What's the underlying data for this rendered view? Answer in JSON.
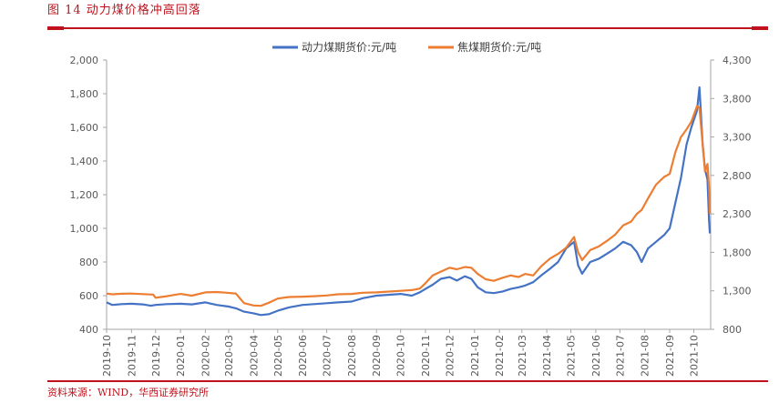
{
  "header": {
    "figure_title": "图 14    动力煤价格冲高回落"
  },
  "footer": {
    "source": "资料来源：WIND，华西证券研究所"
  },
  "colors": {
    "accent": "#c0121c",
    "thermal": "#4472c4",
    "coking": "#ed7d31",
    "axis": "#a6a6a6",
    "text": "#595959"
  },
  "chart_data": {
    "type": "line",
    "title": "",
    "legend_position": "top",
    "grid": false,
    "x_ticks": [
      "2019-10",
      "2019-11",
      "2019-12",
      "2020-01",
      "2020-02",
      "2020-03",
      "2020-04",
      "2020-05",
      "2020-06",
      "2020-07",
      "2020-08",
      "2020-09",
      "2020-10",
      "2020-11",
      "2020-12",
      "2021-01",
      "2021-02",
      "2021-03",
      "2021-04",
      "2021-05",
      "2021-06",
      "2021-07",
      "2021-08",
      "2021-09",
      "2021-10"
    ],
    "y_left": {
      "ticks": [
        "400",
        "600",
        "800",
        "1,000",
        "1,200",
        "1,400",
        "1,600",
        "1,800",
        "2,000"
      ],
      "range": [
        400,
        2000
      ]
    },
    "y_right": {
      "ticks": [
        "800",
        "1,300",
        "1,800",
        "2,300",
        "2,800",
        "3,300",
        "3,800",
        "4,300"
      ],
      "range": [
        800,
        4300
      ]
    },
    "series": [
      {
        "name": "动力煤期货价:元/吨",
        "axis": "left",
        "points": [
          [
            "2019-10-01",
            560
          ],
          [
            "2019-10-08",
            545
          ],
          [
            "2019-10-20",
            550
          ],
          [
            "2019-11-01",
            552
          ],
          [
            "2019-11-15",
            548
          ],
          [
            "2019-11-25",
            540
          ],
          [
            "2019-12-01",
            545
          ],
          [
            "2019-12-15",
            550
          ],
          [
            "2020-01-01",
            552
          ],
          [
            "2020-01-15",
            548
          ],
          [
            "2020-02-01",
            560
          ],
          [
            "2020-02-15",
            545
          ],
          [
            "2020-03-01",
            535
          ],
          [
            "2020-03-10",
            525
          ],
          [
            "2020-03-20",
            505
          ],
          [
            "2020-04-01",
            495
          ],
          [
            "2020-04-10",
            485
          ],
          [
            "2020-04-20",
            490
          ],
          [
            "2020-05-01",
            510
          ],
          [
            "2020-05-15",
            530
          ],
          [
            "2020-06-01",
            545
          ],
          [
            "2020-06-15",
            550
          ],
          [
            "2020-07-01",
            555
          ],
          [
            "2020-07-15",
            560
          ],
          [
            "2020-08-01",
            565
          ],
          [
            "2020-08-15",
            585
          ],
          [
            "2020-09-01",
            600
          ],
          [
            "2020-09-15",
            605
          ],
          [
            "2020-10-01",
            610
          ],
          [
            "2020-10-15",
            600
          ],
          [
            "2020-10-25",
            620
          ],
          [
            "2020-11-01",
            640
          ],
          [
            "2020-11-10",
            665
          ],
          [
            "2020-11-20",
            700
          ],
          [
            "2020-12-01",
            710
          ],
          [
            "2020-12-10",
            690
          ],
          [
            "2020-12-20",
            715
          ],
          [
            "2020-12-28",
            700
          ],
          [
            "2021-01-05",
            650
          ],
          [
            "2021-01-15",
            620
          ],
          [
            "2021-01-25",
            615
          ],
          [
            "2021-02-05",
            625
          ],
          [
            "2021-02-15",
            640
          ],
          [
            "2021-02-25",
            650
          ],
          [
            "2021-03-05",
            660
          ],
          [
            "2021-03-15",
            680
          ],
          [
            "2021-03-25",
            720
          ],
          [
            "2021-04-05",
            760
          ],
          [
            "2021-04-15",
            800
          ],
          [
            "2021-04-25",
            880
          ],
          [
            "2021-05-05",
            920
          ],
          [
            "2021-05-10",
            780
          ],
          [
            "2021-05-15",
            730
          ],
          [
            "2021-05-25",
            800
          ],
          [
            "2021-06-05",
            820
          ],
          [
            "2021-06-15",
            850
          ],
          [
            "2021-06-25",
            880
          ],
          [
            "2021-07-05",
            920
          ],
          [
            "2021-07-15",
            900
          ],
          [
            "2021-07-22",
            860
          ],
          [
            "2021-07-28",
            800
          ],
          [
            "2021-08-05",
            880
          ],
          [
            "2021-08-15",
            920
          ],
          [
            "2021-08-25",
            960
          ],
          [
            "2021-09-01",
            1000
          ],
          [
            "2021-09-08",
            1150
          ],
          [
            "2021-09-15",
            1300
          ],
          [
            "2021-09-22",
            1500
          ],
          [
            "2021-09-28",
            1600
          ],
          [
            "2021-10-05",
            1700
          ],
          [
            "2021-10-08",
            1838
          ],
          [
            "2021-10-12",
            1500
          ],
          [
            "2021-10-15",
            1350
          ],
          [
            "2021-10-18",
            1290
          ],
          [
            "2021-10-20",
            1050
          ],
          [
            "2021-10-21",
            970
          ]
        ]
      },
      {
        "name": "焦煤期货价:元/吨",
        "axis": "right",
        "points": [
          [
            "2019-10-01",
            1265
          ],
          [
            "2019-10-08",
            1255
          ],
          [
            "2019-10-20",
            1262
          ],
          [
            "2019-11-01",
            1265
          ],
          [
            "2019-11-15",
            1258
          ],
          [
            "2019-11-28",
            1252
          ],
          [
            "2019-12-01",
            1210
          ],
          [
            "2019-12-15",
            1230
          ],
          [
            "2020-01-01",
            1260
          ],
          [
            "2020-01-15",
            1238
          ],
          [
            "2020-02-01",
            1280
          ],
          [
            "2020-02-15",
            1285
          ],
          [
            "2020-02-28",
            1275
          ],
          [
            "2020-03-10",
            1265
          ],
          [
            "2020-03-20",
            1140
          ],
          [
            "2020-04-01",
            1110
          ],
          [
            "2020-04-10",
            1105
          ],
          [
            "2020-04-20",
            1145
          ],
          [
            "2020-05-01",
            1200
          ],
          [
            "2020-05-15",
            1220
          ],
          [
            "2020-06-01",
            1225
          ],
          [
            "2020-06-15",
            1230
          ],
          [
            "2020-07-01",
            1240
          ],
          [
            "2020-07-15",
            1255
          ],
          [
            "2020-08-01",
            1260
          ],
          [
            "2020-08-15",
            1275
          ],
          [
            "2020-09-01",
            1280
          ],
          [
            "2020-09-15",
            1290
          ],
          [
            "2020-10-01",
            1300
          ],
          [
            "2020-10-15",
            1310
          ],
          [
            "2020-10-25",
            1330
          ],
          [
            "2020-11-01",
            1400
          ],
          [
            "2020-11-10",
            1500
          ],
          [
            "2020-11-20",
            1550
          ],
          [
            "2020-12-01",
            1600
          ],
          [
            "2020-12-10",
            1580
          ],
          [
            "2020-12-20",
            1610
          ],
          [
            "2020-12-28",
            1600
          ],
          [
            "2021-01-05",
            1520
          ],
          [
            "2021-01-15",
            1450
          ],
          [
            "2021-01-25",
            1430
          ],
          [
            "2021-02-05",
            1470
          ],
          [
            "2021-02-15",
            1500
          ],
          [
            "2021-02-25",
            1480
          ],
          [
            "2021-03-05",
            1520
          ],
          [
            "2021-03-15",
            1500
          ],
          [
            "2021-03-25",
            1620
          ],
          [
            "2021-04-05",
            1720
          ],
          [
            "2021-04-15",
            1780
          ],
          [
            "2021-04-25",
            1860
          ],
          [
            "2021-05-05",
            2000
          ],
          [
            "2021-05-10",
            1800
          ],
          [
            "2021-05-15",
            1700
          ],
          [
            "2021-05-25",
            1830
          ],
          [
            "2021-06-05",
            1880
          ],
          [
            "2021-06-15",
            1950
          ],
          [
            "2021-06-25",
            2030
          ],
          [
            "2021-07-05",
            2150
          ],
          [
            "2021-07-15",
            2200
          ],
          [
            "2021-07-22",
            2300
          ],
          [
            "2021-07-28",
            2350
          ],
          [
            "2021-08-05",
            2500
          ],
          [
            "2021-08-15",
            2680
          ],
          [
            "2021-08-25",
            2780
          ],
          [
            "2021-09-01",
            2820
          ],
          [
            "2021-09-08",
            3100
          ],
          [
            "2021-09-15",
            3300
          ],
          [
            "2021-09-22",
            3400
          ],
          [
            "2021-09-28",
            3500
          ],
          [
            "2021-10-05",
            3700
          ],
          [
            "2021-10-08",
            3680
          ],
          [
            "2021-10-12",
            3200
          ],
          [
            "2021-10-15",
            2850
          ],
          [
            "2021-10-18",
            2950
          ],
          [
            "2021-10-20",
            2650
          ],
          [
            "2021-10-21",
            2300
          ]
        ]
      }
    ]
  }
}
